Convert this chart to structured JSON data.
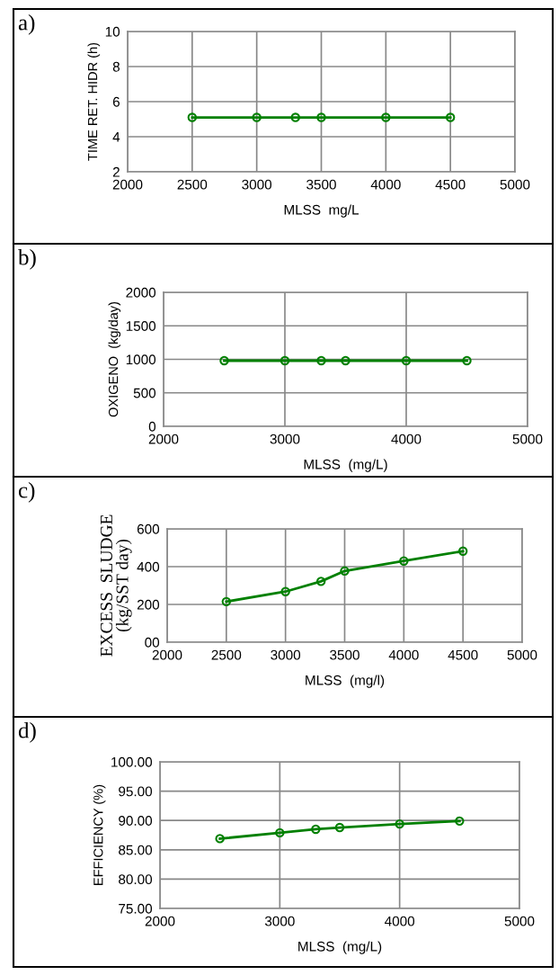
{
  "chart_data": [
    {
      "type": "line",
      "annotations": [
        "a)"
      ],
      "xlabel": "MLSS  mg/L",
      "ylabel": "TIME RET. HIDR (h)",
      "x": [
        2500,
        3000,
        3300,
        3500,
        4000,
        4500
      ],
      "series": [
        {
          "color": "#008000",
          "values": [
            5.1,
            5.1,
            5.1,
            5.1,
            5.1,
            5.1
          ]
        }
      ],
      "xlim": [
        2000,
        5000
      ],
      "xticks": [
        2000,
        2500,
        3000,
        3500,
        4000,
        4500,
        5000
      ],
      "ylim": [
        2,
        10
      ],
      "yticks": [
        2,
        4,
        6,
        8,
        10
      ],
      "grid": true,
      "marker": "circle",
      "line_style": "solid"
    },
    {
      "type": "line",
      "annotations": [
        "b)"
      ],
      "xlabel": "MLSS  (mg/L)",
      "ylabel": "OXIGENO  (kg/day)",
      "x": [
        2500,
        3000,
        3300,
        3500,
        4000,
        4500
      ],
      "series": [
        {
          "color": "#008000",
          "values": [
            980,
            980,
            980,
            980,
            980,
            980
          ]
        }
      ],
      "xlim": [
        2000,
        5000
      ],
      "xticks": [
        2000,
        3000,
        4000,
        5000
      ],
      "ylim": [
        0,
        2000
      ],
      "yticks": [
        0,
        500,
        1000,
        1500,
        2000
      ],
      "grid": true,
      "marker": "circle",
      "line_style": "solid"
    },
    {
      "type": "line",
      "annotations": [
        "c)"
      ],
      "xlabel": "MLSS  (mg/l)",
      "ylabel": "EXCESS  SLUDGE\n(kg/SST day)",
      "x": [
        2500,
        3000,
        3300,
        3500,
        4000,
        4500
      ],
      "series": [
        {
          "color": "#008000",
          "values": [
            215,
            268,
            322,
            377,
            430,
            482
          ]
        }
      ],
      "xlim": [
        2000,
        5000
      ],
      "xticks": [
        2000,
        2500,
        3000,
        3500,
        4000,
        4500,
        5000
      ],
      "ylim": [
        0,
        600
      ],
      "yticks": [
        {
          "value": 0,
          "label": "00"
        },
        200,
        400,
        600
      ],
      "grid": true,
      "marker": "circle",
      "line_style": "solid"
    },
    {
      "type": "line",
      "annotations": [
        "d)"
      ],
      "xlabel": "MLSS  (mg/L)",
      "ylabel": "EFFICIENCY (%)",
      "x": [
        2500,
        3000,
        3300,
        3500,
        4000,
        4500
      ],
      "series": [
        {
          "color": "#008000",
          "values": [
            86.9,
            87.9,
            88.5,
            88.8,
            89.4,
            89.9
          ]
        }
      ],
      "xlim": [
        2000,
        5000
      ],
      "xticks": [
        2000,
        3000,
        4000,
        5000
      ],
      "ylim": [
        75,
        100
      ],
      "yticks": [
        {
          "value": 75,
          "label": "75.00"
        },
        {
          "value": 80,
          "label": "80.00"
        },
        {
          "value": 85,
          "label": "85.00"
        },
        {
          "value": 90,
          "label": "90.00"
        },
        {
          "value": 95,
          "label": "95.00"
        },
        {
          "value": 100,
          "label": "100.00"
        }
      ],
      "grid": true,
      "marker": "circle",
      "line_style": "solid"
    }
  ]
}
